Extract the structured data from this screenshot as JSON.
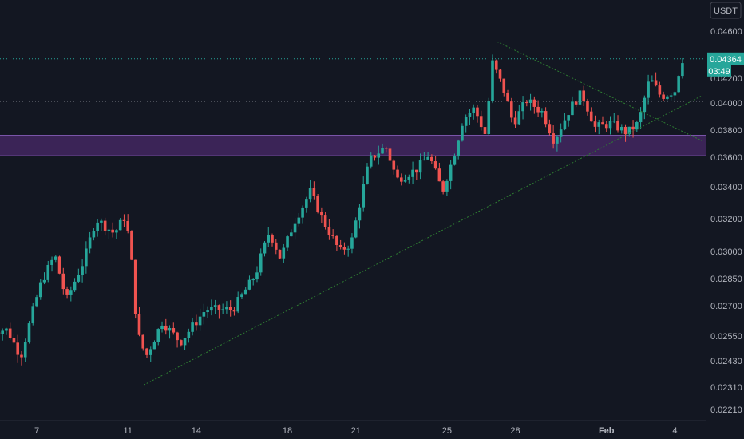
{
  "currency": "USDT",
  "colors": {
    "background": "#131722",
    "up": "#26a69a",
    "down": "#ef5350",
    "trendline": "#2e7d32",
    "zone_fill": "#4a2a6a",
    "zone_border": "#9c6ad6",
    "price_badge": "#26a69a",
    "axis_text": "#b2b5be"
  },
  "chart_data": {
    "type": "candlestick",
    "y_axis": {
      "ylim": [
        0.0215,
        0.0476
      ],
      "ticks": [
        "0.04600",
        "0.04200",
        "0.04000",
        "0.03800",
        "0.03600",
        "0.03400",
        "0.03200",
        "0.03000",
        "0.02850",
        "0.02700",
        "0.02550",
        "0.02430",
        "0.02310",
        "0.02210"
      ],
      "tick_values": [
        0.046,
        0.042,
        0.04,
        0.038,
        0.036,
        0.034,
        0.032,
        0.03,
        0.0285,
        0.027,
        0.0255,
        0.0243,
        0.0231,
        0.0221
      ]
    },
    "x_axis": {
      "ticks": [
        {
          "label": "7",
          "day": 7
        },
        {
          "label": "11",
          "day": 11
        },
        {
          "label": "14",
          "day": 14
        },
        {
          "label": "18",
          "day": 18
        },
        {
          "label": "21",
          "day": 21
        },
        {
          "label": "25",
          "day": 25
        },
        {
          "label": "28",
          "day": 28
        },
        {
          "label": "Feb",
          "day": 32,
          "bold": true
        },
        {
          "label": "4",
          "day": 35
        }
      ]
    },
    "current_price": "0.04364",
    "countdown": "03:49",
    "reference_lines": [
      0.04364,
      0.04012
    ],
    "zone": {
      "from": 0.0361,
      "to": 0.0376
    },
    "trendlines": [
      {
        "from": {
          "day": 11.7,
          "price": 0.0232
        },
        "to": {
          "day": 36.2,
          "price": 0.0406
        }
      },
      {
        "from": {
          "day": 27.2,
          "price": 0.0451
        },
        "to": {
          "day": 36.2,
          "price": 0.0372
        }
      }
    ],
    "ohlc_anchors": [
      {
        "day": 5.7,
        "close": 0.0258
      },
      {
        "day": 6.3,
        "close": 0.0245
      },
      {
        "day": 7.2,
        "close": 0.0283
      },
      {
        "day": 7.8,
        "close": 0.0298
      },
      {
        "day": 8.3,
        "close": 0.0273
      },
      {
        "day": 9.1,
        "close": 0.0296
      },
      {
        "day": 9.6,
        "close": 0.032
      },
      {
        "day": 10.4,
        "close": 0.0311
      },
      {
        "day": 10.9,
        "close": 0.0322
      },
      {
        "day": 11.2,
        "close": 0.029
      },
      {
        "day": 11.4,
        "close": 0.0257
      },
      {
        "day": 11.8,
        "close": 0.0245
      },
      {
        "day": 12.5,
        "close": 0.0262
      },
      {
        "day": 13.3,
        "close": 0.0252
      },
      {
        "day": 14.4,
        "close": 0.0268
      },
      {
        "day": 15.6,
        "close": 0.0268
      },
      {
        "day": 16.6,
        "close": 0.0287
      },
      {
        "day": 17.2,
        "close": 0.0312
      },
      {
        "day": 17.7,
        "close": 0.0296
      },
      {
        "day": 18.3,
        "close": 0.0318
      },
      {
        "day": 19.0,
        "close": 0.0337
      },
      {
        "day": 19.6,
        "close": 0.0318
      },
      {
        "day": 20.3,
        "close": 0.03
      },
      {
        "day": 20.8,
        "close": 0.0305
      },
      {
        "day": 21.6,
        "close": 0.0358
      },
      {
        "day": 22.3,
        "close": 0.0368
      },
      {
        "day": 22.8,
        "close": 0.0345
      },
      {
        "day": 23.7,
        "close": 0.0352
      },
      {
        "day": 24.2,
        "close": 0.0362
      },
      {
        "day": 24.8,
        "close": 0.0337
      },
      {
        "day": 25.3,
        "close": 0.0361
      },
      {
        "day": 25.7,
        "close": 0.0388
      },
      {
        "day": 26.2,
        "close": 0.0396
      },
      {
        "day": 26.7,
        "close": 0.0376
      },
      {
        "day": 27.0,
        "close": 0.0433
      },
      {
        "day": 27.5,
        "close": 0.041
      },
      {
        "day": 27.9,
        "close": 0.0385
      },
      {
        "day": 28.5,
        "close": 0.0402
      },
      {
        "day": 29.2,
        "close": 0.0393
      },
      {
        "day": 29.7,
        "close": 0.0372
      },
      {
        "day": 30.4,
        "close": 0.0396
      },
      {
        "day": 30.9,
        "close": 0.0408
      },
      {
        "day": 31.5,
        "close": 0.0382
      },
      {
        "day": 32.2,
        "close": 0.0385
      },
      {
        "day": 32.9,
        "close": 0.0378
      },
      {
        "day": 33.4,
        "close": 0.0385
      },
      {
        "day": 33.9,
        "close": 0.042
      },
      {
        "day": 34.4,
        "close": 0.0405
      },
      {
        "day": 35.0,
        "close": 0.041
      },
      {
        "day": 35.3,
        "close": 0.0436
      }
    ]
  }
}
